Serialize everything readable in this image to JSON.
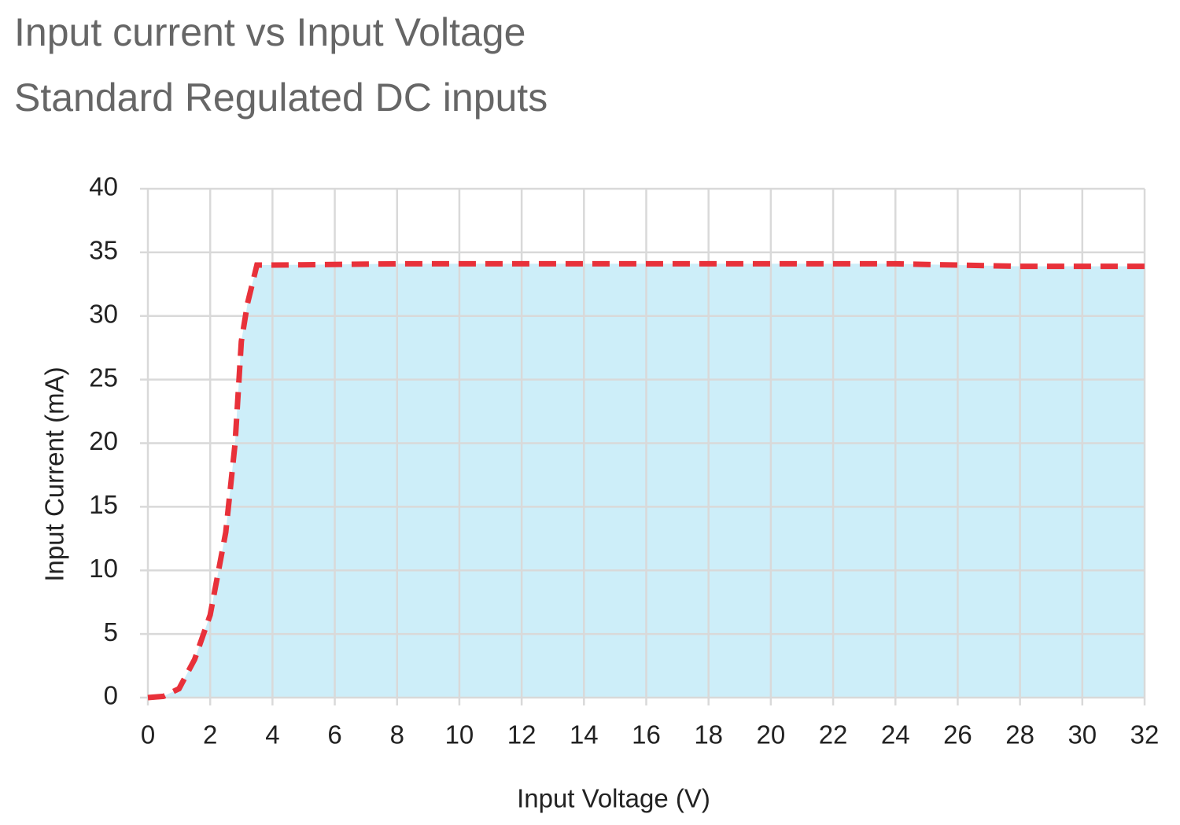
{
  "chart_data": {
    "type": "area",
    "title": "Input current vs Input Voltage",
    "subtitle": "Standard Regulated DC inputs",
    "x_label": "Input Voltage (V)",
    "y_label": "Input Current (mA)",
    "x": [
      0,
      0.5,
      1,
      1.5,
      2,
      2.5,
      2.8,
      3,
      3.2,
      3.5,
      4,
      8,
      16,
      24,
      28,
      32
    ],
    "series": [
      {
        "color": "#e8313a",
        "fill": "#cdeef9",
        "line_style": "dashed",
        "values": [
          0,
          0.1,
          0.7,
          3,
          6.5,
          13,
          20,
          28,
          31,
          34,
          34,
          34.1,
          34.1,
          34.1,
          33.9,
          33.9
        ]
      }
    ],
    "xlim": [
      0,
      32
    ],
    "xticks": [
      0,
      2,
      4,
      6,
      8,
      10,
      12,
      14,
      16,
      18,
      20,
      22,
      24,
      26,
      28,
      30,
      32
    ],
    "ylim": [
      0,
      40
    ],
    "yticks": [
      0,
      5,
      10,
      15,
      20,
      25,
      30,
      35,
      40
    ],
    "grid": true
  }
}
